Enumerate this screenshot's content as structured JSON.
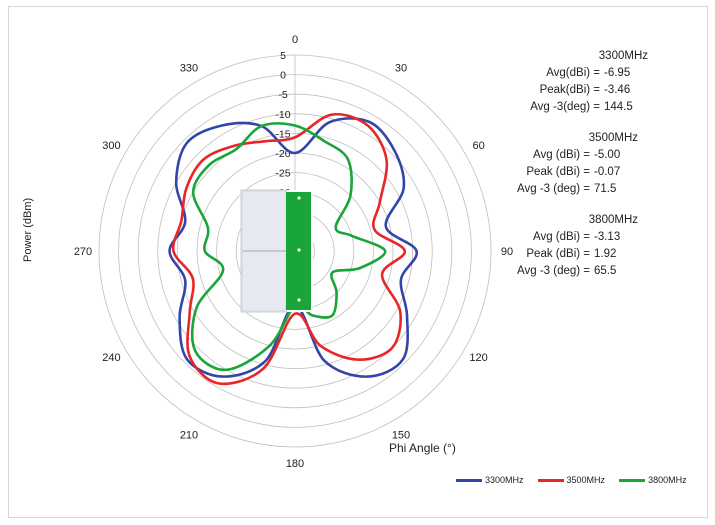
{
  "chart_data": {
    "type": "polar-line",
    "xlabel": "Phi Angle (°)",
    "ylabel": "Power (dBm)",
    "angle_ticks": [
      "0",
      "30",
      "60",
      "90",
      "120",
      "150",
      "180",
      "210",
      "240",
      "270",
      "300",
      "330"
    ],
    "radial_ticks": [
      "5",
      "0",
      "-5",
      "-10",
      "-15",
      "-20",
      "-25",
      "-30",
      "-35",
      "-40"
    ],
    "rlim": [
      -45,
      5
    ],
    "legend_position": "bottom-right",
    "series": [
      {
        "name": "3300MHz",
        "color": "#3346a8",
        "angles": [
          0,
          15,
          30,
          45,
          60,
          75,
          90,
          105,
          120,
          135,
          150,
          165,
          180,
          195,
          210,
          225,
          240,
          255,
          270,
          285,
          300,
          315,
          330,
          345,
          360
        ],
        "values": [
          -20,
          -11,
          -7,
          -9,
          -13,
          -21,
          -14,
          -17,
          -12,
          -6,
          -8,
          -16,
          -31,
          -16,
          -8,
          -6,
          -11,
          -16,
          -13,
          -16,
          -10,
          -6,
          -8,
          -12,
          -20
        ]
      },
      {
        "name": "3500MHz",
        "color": "#e8262a",
        "angles": [
          0,
          15,
          30,
          45,
          60,
          75,
          90,
          105,
          120,
          135,
          150,
          165,
          180,
          195,
          210,
          225,
          240,
          255,
          270,
          285,
          300,
          315,
          330,
          345,
          360
        ],
        "values": [
          -16,
          -9,
          -8,
          -12,
          -20,
          -24,
          -17,
          -22,
          -14,
          -10,
          -13,
          -20,
          -29,
          -14,
          -6,
          -7,
          -14,
          -18,
          -14,
          -15,
          -13,
          -12,
          -14,
          -16,
          -16
        ]
      },
      {
        "name": "3800MHz",
        "color": "#1aa53a",
        "angles": [
          0,
          15,
          30,
          45,
          60,
          75,
          90,
          105,
          120,
          135,
          150,
          165,
          180,
          195,
          210,
          225,
          240,
          255,
          270,
          285,
          300,
          315,
          330,
          345,
          360
        ],
        "values": [
          -13,
          -16,
          -18,
          -25,
          -33,
          -30,
          -22,
          -28,
          -34,
          -30,
          -26,
          -28,
          -31,
          -20,
          -10,
          -9,
          -16,
          -26,
          -22,
          -22,
          -15,
          -14,
          -15,
          -12,
          -13
        ]
      }
    ],
    "annotations": [
      {
        "title": "3300MHz",
        "rows": [
          [
            "Avg(dBi) =",
            "-6.95"
          ],
          [
            "Peak(dBi) =",
            "-3.46"
          ],
          [
            "Avg -3(deg) =",
            "144.5"
          ]
        ]
      },
      {
        "title": "3500MHz",
        "rows": [
          [
            "Avg (dBi) =",
            "-5.00"
          ],
          [
            "Peak (dBi) =",
            "-0.07"
          ],
          [
            "Avg -3 (deg) =",
            "71.5"
          ]
        ]
      },
      {
        "title": "3800MHz",
        "rows": [
          [
            "Avg (dBi) =",
            "-3.13"
          ],
          [
            "Peak (dBi) =",
            "1.92"
          ],
          [
            "Avg -3 (deg) =",
            "65.5"
          ]
        ]
      }
    ]
  }
}
